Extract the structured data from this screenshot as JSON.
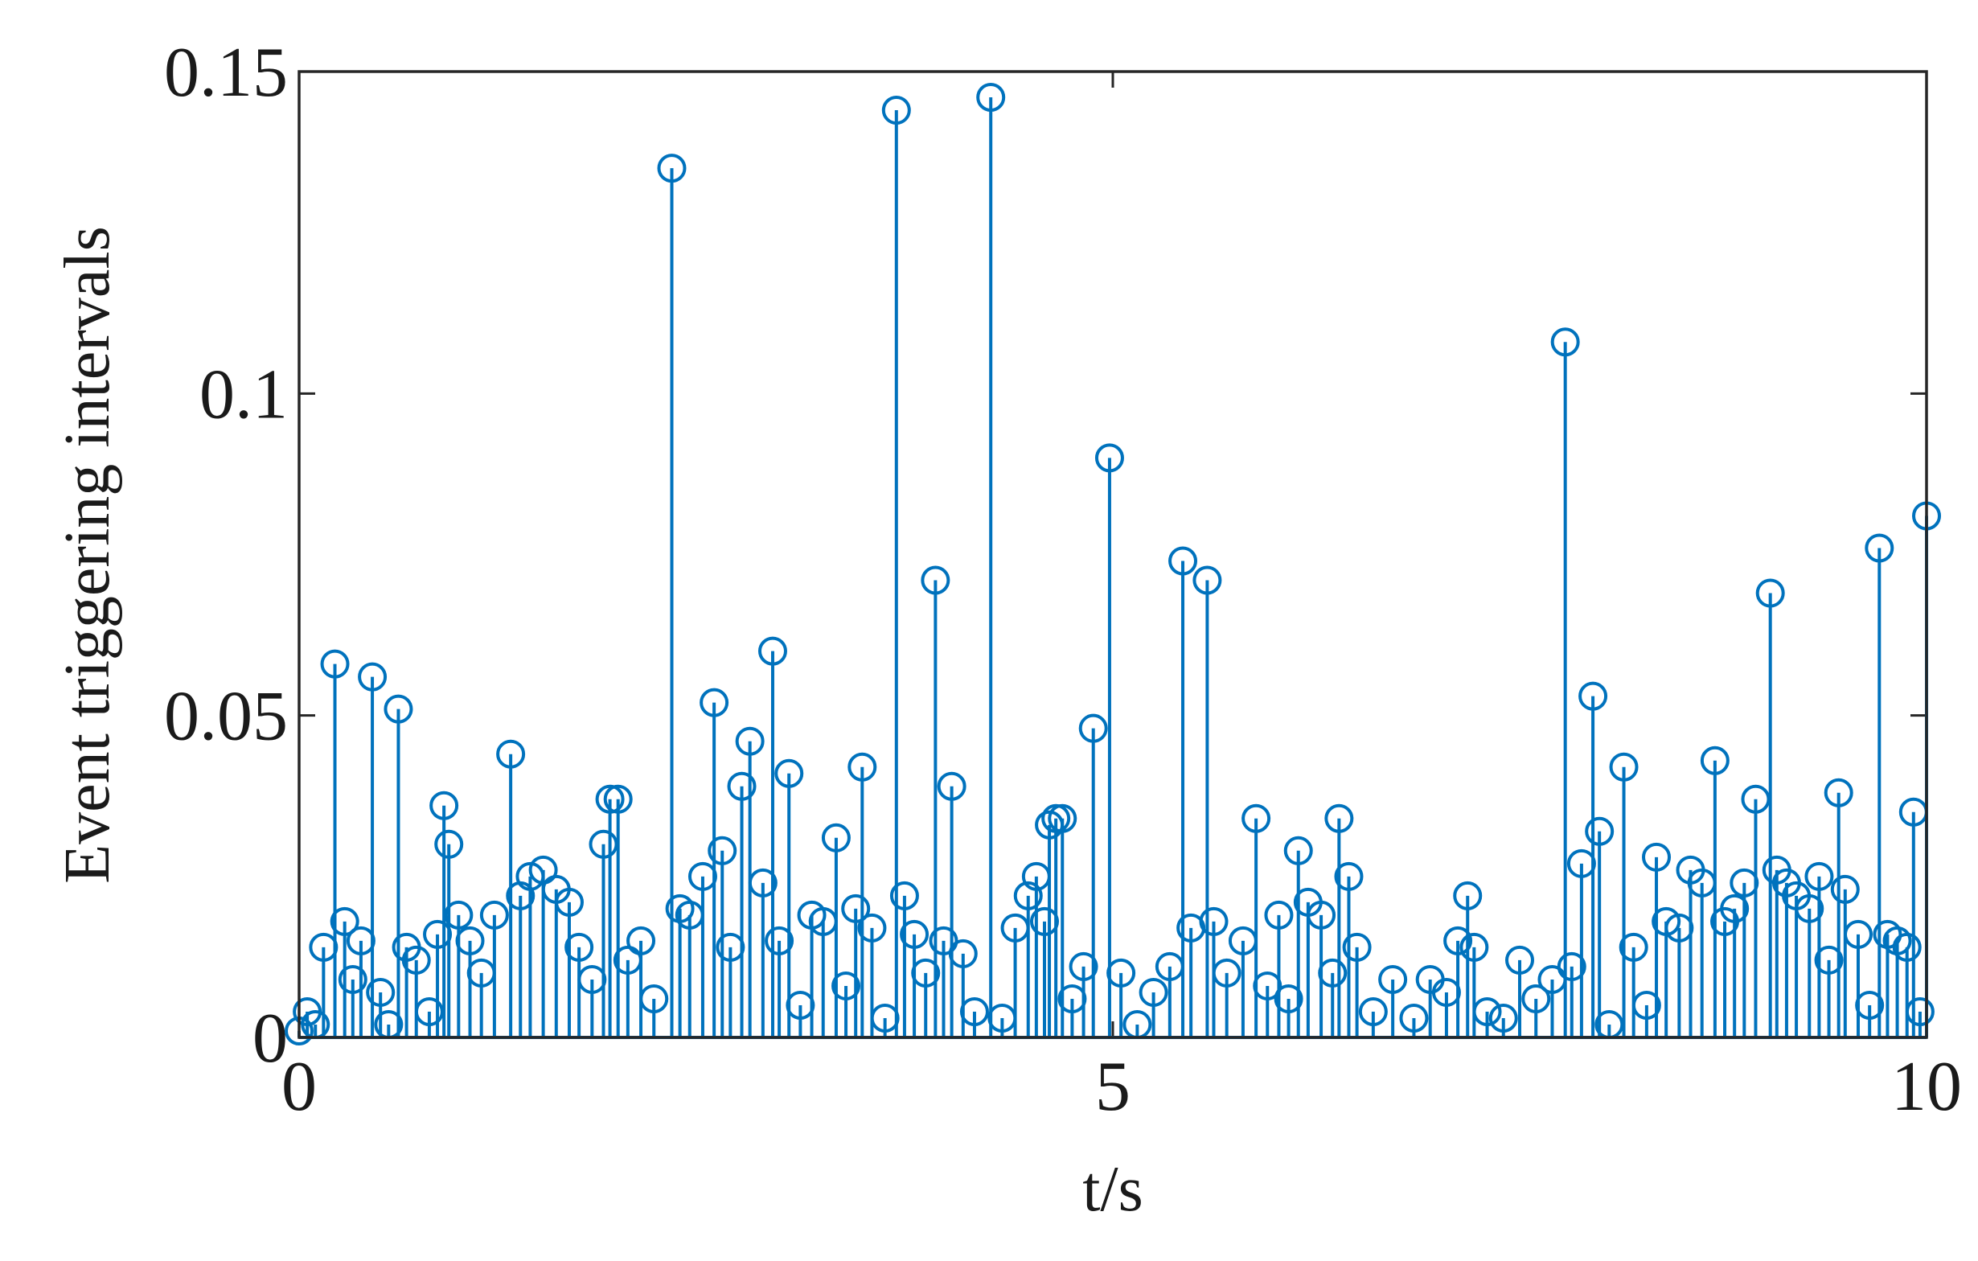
{
  "chart_data": {
    "type": "stem",
    "xlabel": "t/s",
    "ylabel": "Event triggering intervals",
    "color": "#0072bd",
    "xlim": [
      0,
      10
    ],
    "xticks": [
      0,
      5,
      10
    ],
    "ylim": [
      0,
      0.15
    ],
    "yticks": [
      0,
      0.05,
      0.1,
      0.15
    ],
    "grid": false,
    "x": [
      0.0,
      0.05,
      0.1,
      0.15,
      0.22,
      0.28,
      0.33,
      0.38,
      0.45,
      0.5,
      0.55,
      0.61,
      0.66,
      0.72,
      0.8,
      0.85,
      0.89,
      0.92,
      0.98,
      1.05,
      1.12,
      1.2,
      1.3,
      1.36,
      1.42,
      1.5,
      1.58,
      1.66,
      1.72,
      1.8,
      1.87,
      1.91,
      1.96,
      2.02,
      2.1,
      2.18,
      2.29,
      2.34,
      2.4,
      2.48,
      2.55,
      2.6,
      2.65,
      2.72,
      2.77,
      2.85,
      2.91,
      2.95,
      3.01,
      3.08,
      3.15,
      3.22,
      3.3,
      3.36,
      3.42,
      3.46,
      3.52,
      3.6,
      3.67,
      3.72,
      3.78,
      3.85,
      3.91,
      3.96,
      4.01,
      4.08,
      4.15,
      4.25,
      4.32,
      4.4,
      4.48,
      4.53,
      4.58,
      4.61,
      4.65,
      4.69,
      4.75,
      4.82,
      4.88,
      4.98,
      5.05,
      5.15,
      5.25,
      5.35,
      5.43,
      5.48,
      5.58,
      5.62,
      5.7,
      5.8,
      5.88,
      5.95,
      6.02,
      6.08,
      6.14,
      6.2,
      6.28,
      6.35,
      6.39,
      6.45,
      6.5,
      6.6,
      6.72,
      6.85,
      6.95,
      7.05,
      7.12,
      7.18,
      7.22,
      7.3,
      7.4,
      7.5,
      7.6,
      7.7,
      7.78,
      7.82,
      7.88,
      7.95,
      7.99,
      8.05,
      8.14,
      8.2,
      8.28,
      8.34,
      8.4,
      8.48,
      8.55,
      8.62,
      8.7,
      8.76,
      8.82,
      8.88,
      8.95,
      9.04,
      9.08,
      9.14,
      9.2,
      9.28,
      9.34,
      9.4,
      9.46,
      9.5,
      9.58,
      9.65,
      9.71,
      9.76,
      9.82,
      9.88,
      9.92,
      9.96,
      10.0
    ],
    "values": [
      0.001,
      0.004,
      0.002,
      0.014,
      0.058,
      0.018,
      0.009,
      0.015,
      0.056,
      0.007,
      0.002,
      0.051,
      0.014,
      0.012,
      0.004,
      0.016,
      0.036,
      0.03,
      0.019,
      0.015,
      0.01,
      0.019,
      0.044,
      0.022,
      0.025,
      0.026,
      0.023,
      0.021,
      0.014,
      0.009,
      0.03,
      0.037,
      0.037,
      0.012,
      0.015,
      0.006,
      0.135,
      0.02,
      0.019,
      0.025,
      0.052,
      0.029,
      0.014,
      0.039,
      0.046,
      0.024,
      0.06,
      0.015,
      0.041,
      0.005,
      0.019,
      0.018,
      0.031,
      0.008,
      0.02,
      0.042,
      0.017,
      0.003,
      0.144,
      0.022,
      0.016,
      0.01,
      0.071,
      0.015,
      0.039,
      0.013,
      0.004,
      0.146,
      0.003,
      0.017,
      0.022,
      0.025,
      0.018,
      0.033,
      0.034,
      0.034,
      0.006,
      0.011,
      0.048,
      0.09,
      0.01,
      0.002,
      0.007,
      0.011,
      0.074,
      0.017,
      0.071,
      0.018,
      0.01,
      0.015,
      0.034,
      0.008,
      0.019,
      0.006,
      0.029,
      0.021,
      0.019,
      0.01,
      0.034,
      0.025,
      0.014,
      0.004,
      0.009,
      0.003,
      0.009,
      0.007,
      0.015,
      0.022,
      0.014,
      0.004,
      0.003,
      0.012,
      0.006,
      0.009,
      0.108,
      0.011,
      0.027,
      0.053,
      0.032,
      0.002,
      0.042,
      0.014,
      0.005,
      0.028,
      0.018,
      0.017,
      0.026,
      0.024,
      0.043,
      0.018,
      0.02,
      0.024,
      0.037,
      0.069,
      0.026,
      0.024,
      0.022,
      0.02,
      0.025,
      0.012,
      0.038,
      0.023,
      0.016,
      0.005,
      0.076,
      0.016,
      0.015,
      0.014,
      0.035,
      0.004,
      0.081
    ]
  }
}
